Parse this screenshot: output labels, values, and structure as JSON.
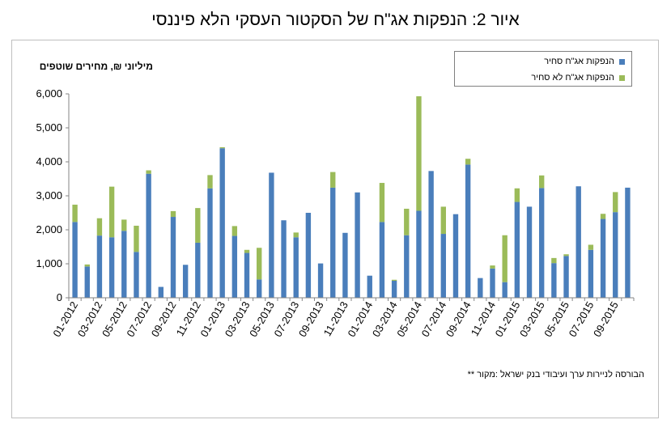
{
  "title": "איור 2: הנפקות אג\"ח של הסקטור העסקי הלא פיננסי",
  "source_note": "הבורסה לניירות ערך ועיבודי בנק ישראל :מקור **",
  "colors": {
    "series1": "#4a7ebb",
    "series2": "#9bbb59",
    "axis": "#868686",
    "grid": "#d9d9d9"
  },
  "chart_data": {
    "type": "bar",
    "stacked": true,
    "ylabel": "מיליוני ₪, מחירים שוטפים",
    "ylim": [
      0,
      6000
    ],
    "yticks": [
      "0",
      "1,000",
      "2,000",
      "3,000",
      "4,000",
      "5,000",
      "6,000"
    ],
    "legend_position": "top-right",
    "grid": false,
    "categories": [
      "01-2012",
      "02-2012",
      "03-2012",
      "04-2012",
      "05-2012",
      "06-2012",
      "07-2012",
      "08-2012",
      "09-2012",
      "10-2012",
      "11-2012",
      "12-2012",
      "01-2013",
      "02-2013",
      "03-2013",
      "04-2013",
      "05-2013",
      "06-2013",
      "07-2013",
      "08-2013",
      "09-2013",
      "10-2013",
      "11-2013",
      "12-2013",
      "01-2014",
      "02-2014",
      "03-2014",
      "04-2014",
      "05-2014",
      "06-2014",
      "07-2014",
      "08-2014",
      "09-2014",
      "10-2014",
      "11-2014",
      "12-2014",
      "01-2015",
      "02-2015",
      "03-2015",
      "04-2015",
      "05-2015",
      "06-2015",
      "07-2015",
      "08-2015",
      "09-2015",
      "10-2015"
    ],
    "tick_labels": [
      "01-2012",
      "03-2012",
      "05-2012",
      "07-2012",
      "09-2012",
      "11-2012",
      "01-2013",
      "03-2013",
      "05-2013",
      "07-2013",
      "09-2013",
      "11-2013",
      "01-2014",
      "03-2014",
      "05-2014",
      "07-2014",
      "09-2014",
      "11-2014",
      "01-2015",
      "03-2015",
      "05-2015",
      "07-2015",
      "09-2015"
    ],
    "series": [
      {
        "name": "הנפקות אג\"ח סחיר",
        "values": [
          2230,
          920,
          1830,
          1780,
          1970,
          1350,
          3650,
          320,
          2380,
          970,
          1620,
          3220,
          4400,
          1820,
          1320,
          540,
          3680,
          2280,
          1780,
          2500,
          1010,
          3240,
          1910,
          3100,
          650,
          2230,
          500,
          1840,
          2560,
          3730,
          1880,
          2460,
          3920,
          580,
          860,
          460,
          2820,
          2680,
          3230,
          1020,
          1230,
          3280,
          1410,
          2320,
          2520,
          3240
        ]
      },
      {
        "name": "הנפקות אג\"ח לא סחיר",
        "values": [
          510,
          60,
          510,
          1490,
          330,
          770,
          100,
          0,
          170,
          0,
          1020,
          390,
          30,
          290,
          90,
          930,
          0,
          0,
          140,
          0,
          0,
          460,
          0,
          0,
          0,
          1150,
          30,
          780,
          3370,
          0,
          800,
          0,
          170,
          0,
          90,
          1380,
          400,
          0,
          370,
          150,
          50,
          0,
          150,
          150,
          590,
          0
        ]
      }
    ]
  }
}
